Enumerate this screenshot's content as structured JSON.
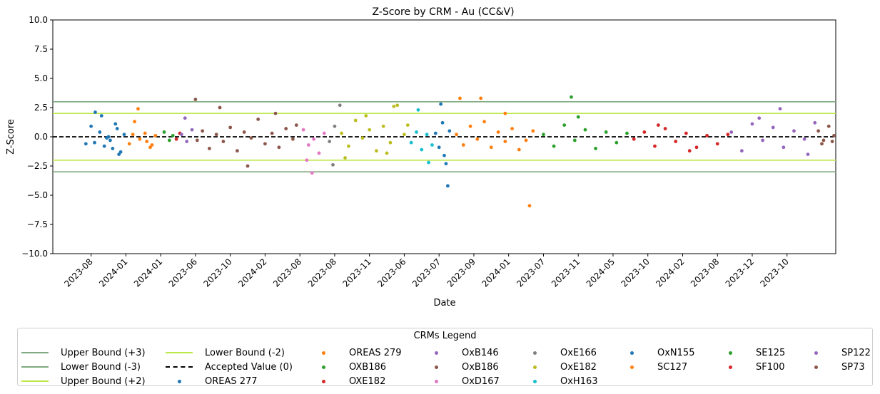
{
  "chart_data": {
    "type": "scatter",
    "title": "Z-Score by CRM - Au (CC&V)",
    "xlabel": "Date",
    "ylabel": "Z-Score",
    "ylim": [
      -10,
      10
    ],
    "yticks": [
      "10.0",
      "7.5",
      "5.0",
      "2.5",
      "0.0",
      "−2.5",
      "−5.0",
      "−7.5",
      "−10.0"
    ],
    "ytick_values": [
      10,
      7.5,
      5,
      2.5,
      0,
      -2.5,
      -5,
      -7.5,
      -10
    ],
    "xticks": [
      "2023-08",
      "2024-01",
      "2024-01",
      "2023-06",
      "2023-10",
      "2024-02",
      "2023-08",
      "2023-08",
      "2023-11",
      "2023-06",
      "2023-07",
      "2023-09",
      "2024-01",
      "2023-07",
      "2023-11",
      "2024-05",
      "2023-10",
      "2024-02",
      "2023-08",
      "2023-12",
      "2023-10"
    ],
    "x_range": [
      -1.1,
      21.4
    ],
    "grid": false,
    "reference_lines": [
      {
        "name": "Upper Bound (+3)",
        "y": 3,
        "color": "#7fa97f",
        "style": "solid"
      },
      {
        "name": "Lower Bound (-3)",
        "y": -3,
        "color": "#7fa97f",
        "style": "solid"
      },
      {
        "name": "Upper Bound (+2)",
        "y": 2,
        "color": "#bce84a",
        "style": "solid"
      },
      {
        "name": "Lower Bound (-2)",
        "y": -2,
        "color": "#bce84a",
        "style": "solid"
      },
      {
        "name": "Accepted Value (0)",
        "y": 0,
        "color": "#000000",
        "style": "dashed"
      }
    ],
    "series": [
      {
        "name": "OREAS 277",
        "color": "#1f77b4",
        "x": [
          -0.15,
          0.0,
          0.12,
          0.25,
          0.38,
          0.5,
          0.62,
          0.75,
          0.85,
          0.95,
          0.3,
          0.55,
          0.8,
          0.7,
          0.45,
          0.1
        ],
        "y": [
          -0.6,
          0.9,
          2.1,
          0.4,
          -0.8,
          0.0,
          -1.0,
          0.7,
          -1.3,
          0.2,
          1.8,
          -0.3,
          -1.5,
          1.1,
          -0.1,
          -0.5
        ]
      },
      {
        "name": "OREAS 279",
        "color": "#ff7f0e",
        "x": [
          1.1,
          1.25,
          1.4,
          1.55,
          1.7,
          1.85,
          1.35,
          1.6,
          1.2,
          1.75
        ],
        "y": [
          -0.6,
          1.3,
          -0.2,
          0.3,
          -0.9,
          0.1,
          2.4,
          -0.4,
          0.2,
          -0.7
        ]
      },
      {
        "name": "OXB186",
        "color": "#2ca02c",
        "x": [
          2.1,
          2.25,
          2.35
        ],
        "y": [
          0.4,
          -0.3,
          0.1
        ]
      },
      {
        "name": "OXE182",
        "color": "#d62728",
        "x": [
          2.45,
          2.55
        ],
        "y": [
          -0.2,
          0.3
        ]
      },
      {
        "name": "OxB146",
        "color": "#9467bd",
        "x": [
          2.6,
          2.75,
          2.9,
          2.7
        ],
        "y": [
          0.2,
          -0.4,
          0.6,
          1.6
        ]
      },
      {
        "name": "OxB186",
        "color": "#8c564b",
        "x": [
          3.05,
          3.2,
          3.4,
          3.6,
          3.8,
          4.0,
          4.2,
          4.4,
          4.6,
          4.8,
          5.0,
          5.2,
          5.4,
          5.6,
          5.8,
          3.0,
          3.7,
          4.5,
          5.3,
          5.9
        ],
        "y": [
          -0.3,
          0.5,
          -1.0,
          0.2,
          -0.4,
          0.8,
          -1.2,
          0.4,
          -0.1,
          1.5,
          -0.6,
          0.3,
          -0.9,
          0.7,
          -0.2,
          3.2,
          2.5,
          -2.5,
          2.0,
          1.0
        ]
      },
      {
        "name": "OxD167",
        "color": "#e377c2",
        "x": [
          6.1,
          6.25,
          6.4,
          6.55,
          6.7,
          6.35,
          6.2
        ],
        "y": [
          0.6,
          -0.7,
          -0.2,
          -1.4,
          0.3,
          -3.1,
          -2.0
        ]
      },
      {
        "name": "OxE166",
        "color": "#7f7f7f",
        "x": [
          6.85,
          7.0,
          7.15,
          6.95
        ],
        "y": [
          -0.4,
          0.9,
          2.7,
          -2.4
        ]
      },
      {
        "name": "OxE182",
        "color": "#bcbd22",
        "x": [
          7.2,
          7.4,
          7.6,
          7.8,
          8.0,
          8.2,
          8.4,
          8.6,
          8.8,
          9.0,
          7.3,
          7.9,
          8.5,
          9.1,
          8.7
        ],
        "y": [
          0.3,
          -0.8,
          1.4,
          -0.1,
          0.6,
          -1.2,
          0.9,
          -0.5,
          2.7,
          0.2,
          -1.8,
          1.8,
          -1.4,
          1.0,
          2.6
        ]
      },
      {
        "name": "OxH163",
        "color": "#17becf",
        "x": [
          9.2,
          9.35,
          9.5,
          9.65,
          9.8,
          9.4,
          9.7
        ],
        "y": [
          -0.5,
          0.4,
          -1.1,
          0.2,
          -0.7,
          2.3,
          -2.2
        ]
      },
      {
        "name": "OxN155",
        "color": "#1f77b4",
        "x": [
          9.9,
          10.0,
          10.1,
          10.2,
          10.3,
          10.05,
          10.25,
          10.15
        ],
        "y": [
          0.3,
          -0.9,
          1.2,
          -2.3,
          0.5,
          2.8,
          -4.2,
          -1.6
        ]
      },
      {
        "name": "SC127",
        "color": "#ff7f0e",
        "x": [
          10.5,
          10.7,
          10.9,
          11.1,
          11.3,
          11.5,
          11.7,
          11.9,
          12.1,
          12.3,
          12.5,
          12.7,
          10.6,
          11.2,
          11.9,
          12.6
        ],
        "y": [
          0.2,
          -0.7,
          0.9,
          -0.2,
          1.3,
          -0.9,
          0.4,
          -0.4,
          0.7,
          -1.1,
          -0.3,
          0.5,
          3.3,
          3.3,
          2.0,
          -5.9
        ]
      },
      {
        "name": "SE125",
        "color": "#2ca02c",
        "x": [
          13.0,
          13.3,
          13.6,
          13.9,
          14.2,
          14.5,
          14.8,
          15.1,
          15.4,
          13.8,
          14.0
        ],
        "y": [
          0.2,
          -0.8,
          1.0,
          -0.3,
          0.6,
          -1.0,
          0.4,
          -0.5,
          0.3,
          3.4,
          1.7
        ]
      },
      {
        "name": "SF100",
        "color": "#d62728",
        "x": [
          15.6,
          15.9,
          16.2,
          16.5,
          16.8,
          17.1,
          17.4,
          17.7,
          18.0,
          18.3,
          16.3,
          17.2
        ],
        "y": [
          -0.2,
          0.4,
          -0.8,
          0.7,
          -0.4,
          0.3,
          -0.9,
          0.1,
          -0.6,
          0.2,
          1.0,
          -1.2
        ]
      },
      {
        "name": "SP122",
        "color": "#9467bd",
        "x": [
          18.4,
          18.7,
          19.0,
          19.3,
          19.6,
          19.9,
          20.2,
          20.5,
          20.8,
          19.2,
          19.8,
          20.6
        ],
        "y": [
          0.4,
          -1.2,
          1.1,
          -0.3,
          0.8,
          -0.9,
          0.5,
          -0.2,
          1.2,
          1.6,
          2.4,
          -1.5
        ]
      },
      {
        "name": "SP73",
        "color": "#8c564b",
        "x": [
          20.9,
          21.05,
          21.2,
          21.35,
          21.0,
          21.3
        ],
        "y": [
          0.5,
          -0.3,
          0.9,
          0.1,
          -0.6,
          -0.4
        ]
      }
    ]
  },
  "legend": {
    "title": "CRMs Legend",
    "columns": [
      [
        {
          "label": "Upper Bound (+3)",
          "kind": "line",
          "color": "#7fa97f"
        },
        {
          "label": "Lower Bound (-3)",
          "kind": "line",
          "color": "#7fa97f"
        },
        {
          "label": "Upper Bound (+2)",
          "kind": "line",
          "color": "#bce84a"
        }
      ],
      [
        {
          "label": "Lower Bound (-2)",
          "kind": "line",
          "color": "#bce84a"
        },
        {
          "label": "Accepted Value (0)",
          "kind": "dashed",
          "color": "#000000"
        },
        {
          "label": "OREAS 277",
          "kind": "dot",
          "color": "#1f77b4"
        }
      ],
      [
        {
          "label": "OREAS 279",
          "kind": "dot",
          "color": "#ff7f0e"
        },
        {
          "label": "OXB186",
          "kind": "dot",
          "color": "#2ca02c"
        },
        {
          "label": "OXE182",
          "kind": "dot",
          "color": "#d62728"
        }
      ],
      [
        {
          "label": "OxB146",
          "kind": "dot",
          "color": "#9467bd"
        },
        {
          "label": "OxB186",
          "kind": "dot",
          "color": "#8c564b"
        },
        {
          "label": "OxD167",
          "kind": "dot",
          "color": "#e377c2"
        }
      ],
      [
        {
          "label": "OxE166",
          "kind": "dot",
          "color": "#7f7f7f"
        },
        {
          "label": "OxE182",
          "kind": "dot",
          "color": "#bcbd22"
        },
        {
          "label": "OxH163",
          "kind": "dot",
          "color": "#17becf"
        }
      ],
      [
        {
          "label": "OxN155",
          "kind": "dot",
          "color": "#1f77b4"
        },
        {
          "label": "SC127",
          "kind": "dot",
          "color": "#ff7f0e"
        }
      ],
      [
        {
          "label": "SE125",
          "kind": "dot",
          "color": "#2ca02c"
        },
        {
          "label": "SF100",
          "kind": "dot",
          "color": "#d62728"
        }
      ],
      [
        {
          "label": "SP122",
          "kind": "dot",
          "color": "#9467bd"
        },
        {
          "label": "SP73",
          "kind": "dot",
          "color": "#8c564b"
        }
      ]
    ]
  }
}
